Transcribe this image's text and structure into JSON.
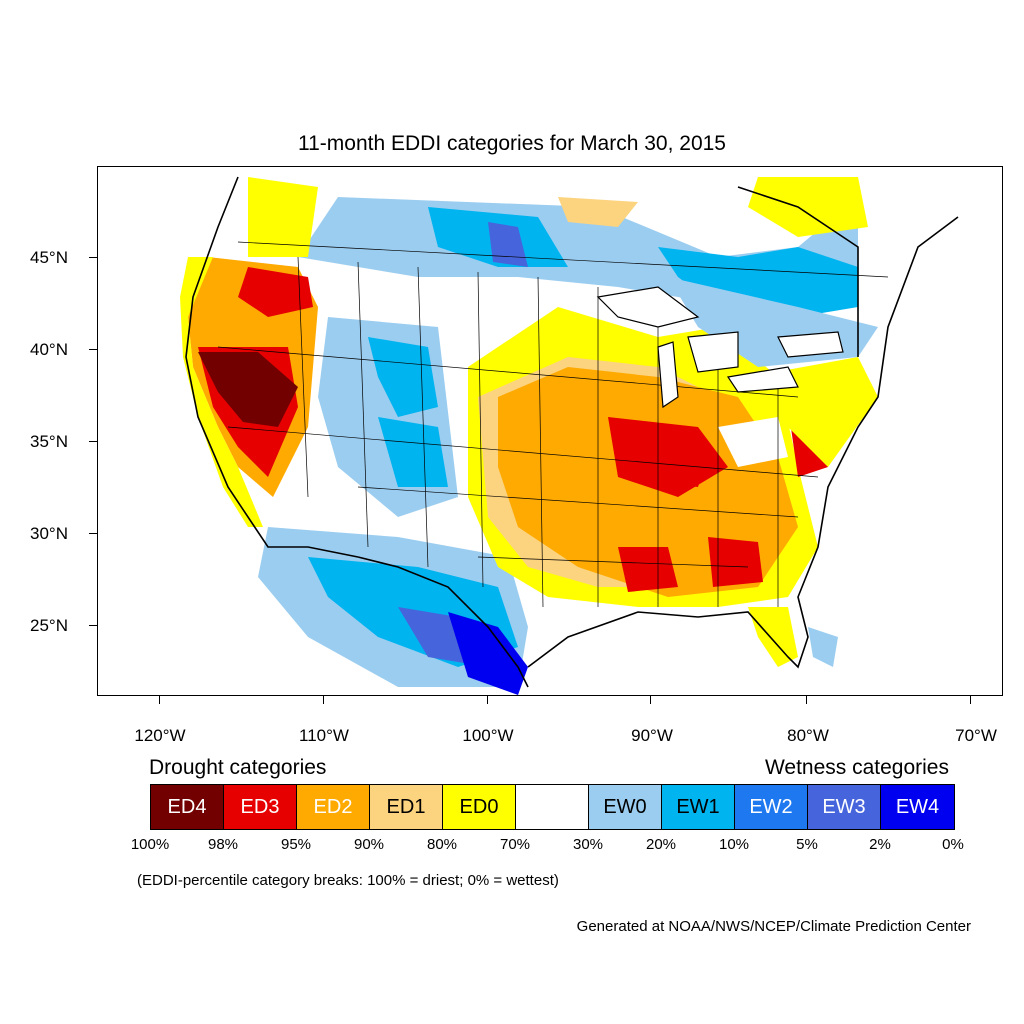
{
  "title": "11-month EDDI categories for March 30, 2015",
  "lat_labels": [
    "45°N",
    "40°N",
    "35°N",
    "30°N",
    "25°N"
  ],
  "lon_labels": [
    "120°W",
    "110°W",
    "100°W",
    "90°W",
    "80°W",
    "70°W"
  ],
  "legend": {
    "drought_heading": "Drought categories",
    "wetness_heading": "Wetness categories",
    "categories": [
      {
        "label": "ED4",
        "color": "#730000",
        "text_color": "#ffffff"
      },
      {
        "label": "ED3",
        "color": "#e60000",
        "text_color": "#ffffff"
      },
      {
        "label": "ED2",
        "color": "#ffaa00",
        "text_color": "#ffffff"
      },
      {
        "label": "ED1",
        "color": "#fcd37f",
        "text_color": "#000000"
      },
      {
        "label": "ED0",
        "color": "#ffff00",
        "text_color": "#000000"
      },
      {
        "label": "",
        "color": "#ffffff",
        "text_color": "#000000"
      },
      {
        "label": "EW0",
        "color": "#9bcdf0",
        "text_color": "#000000"
      },
      {
        "label": "EW1",
        "color": "#00b4f0",
        "text_color": "#000000"
      },
      {
        "label": "EW2",
        "color": "#1e78f0",
        "text_color": "#ffffff"
      },
      {
        "label": "EW3",
        "color": "#4664dc",
        "text_color": "#ffffff"
      },
      {
        "label": "EW4",
        "color": "#0000f0",
        "text_color": "#ffffff"
      }
    ],
    "percentiles": [
      "100%",
      "98%",
      "95%",
      "90%",
      "80%",
      "70%",
      "30%",
      "20%",
      "10%",
      "5%",
      "2%",
      "0%"
    ]
  },
  "note": "(EDDI-percentile category breaks: 100% = driest; 0% = wettest)",
  "credit": "Generated at NOAA/NWS/NCEP/Climate Prediction Center"
}
